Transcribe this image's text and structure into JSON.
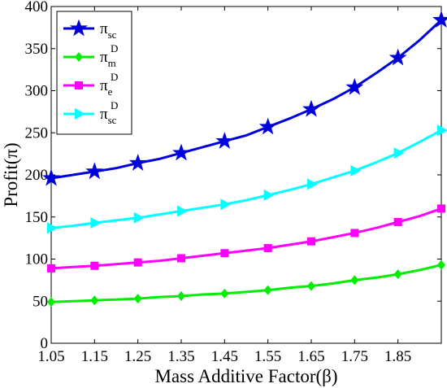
{
  "chart_data": {
    "type": "line",
    "xlabel": "Mass Additive Factor(β)",
    "ylabel": "Profit(π)",
    "x": [
      1.05,
      1.1,
      1.15,
      1.2,
      1.25,
      1.3,
      1.35,
      1.4,
      1.45,
      1.5,
      1.55,
      1.6,
      1.65,
      1.7,
      1.75,
      1.8,
      1.85,
      1.9,
      1.95
    ],
    "xlim": [
      1.05,
      1.95
    ],
    "ylim": [
      0,
      400
    ],
    "x_ticks": [
      "1.05",
      "1.15",
      "1.25",
      "1.35",
      "1.45",
      "1.55",
      "1.65",
      "1.75",
      "1.85"
    ],
    "x_tick_values": [
      1.05,
      1.15,
      1.25,
      1.35,
      1.45,
      1.55,
      1.65,
      1.75,
      1.85
    ],
    "y_ticks": [
      0,
      50,
      100,
      150,
      200,
      250,
      300,
      350,
      400
    ],
    "grid": false,
    "legend_position": "top-left",
    "series": [
      {
        "name": "π",
        "name_sub": "sc",
        "name_sup": "",
        "color": "#0000dd",
        "marker": "star",
        "values": [
          196,
          200,
          204,
          208,
          214,
          219,
          226,
          233,
          240,
          247,
          257,
          267,
          278,
          290,
          304,
          321,
          339,
          360,
          384
        ]
      },
      {
        "name": "π",
        "name_sub": "m",
        "name_sup": "D",
        "color": "#00ee00",
        "marker": "diamond",
        "values": [
          49,
          50,
          51,
          52,
          53,
          55,
          56,
          58,
          59,
          61,
          63,
          66,
          68,
          71,
          75,
          78,
          82,
          87,
          93
        ]
      },
      {
        "name": "π",
        "name_sub": "e",
        "name_sup": "D",
        "color": "#ff00ff",
        "marker": "square",
        "values": [
          89,
          90.5,
          92,
          94,
          96,
          98,
          101,
          104,
          107,
          110,
          113,
          117,
          121,
          126,
          131,
          137,
          144,
          151,
          160
        ]
      },
      {
        "name": "π",
        "name_sub": "sc",
        "name_sup": "D",
        "color": "#00ffff",
        "marker": "triangle-right",
        "values": [
          137,
          139.5,
          143,
          146,
          149,
          153,
          157,
          161,
          165,
          170,
          176,
          182,
          189,
          197,
          205,
          215,
          226,
          239,
          253
        ]
      }
    ]
  }
}
